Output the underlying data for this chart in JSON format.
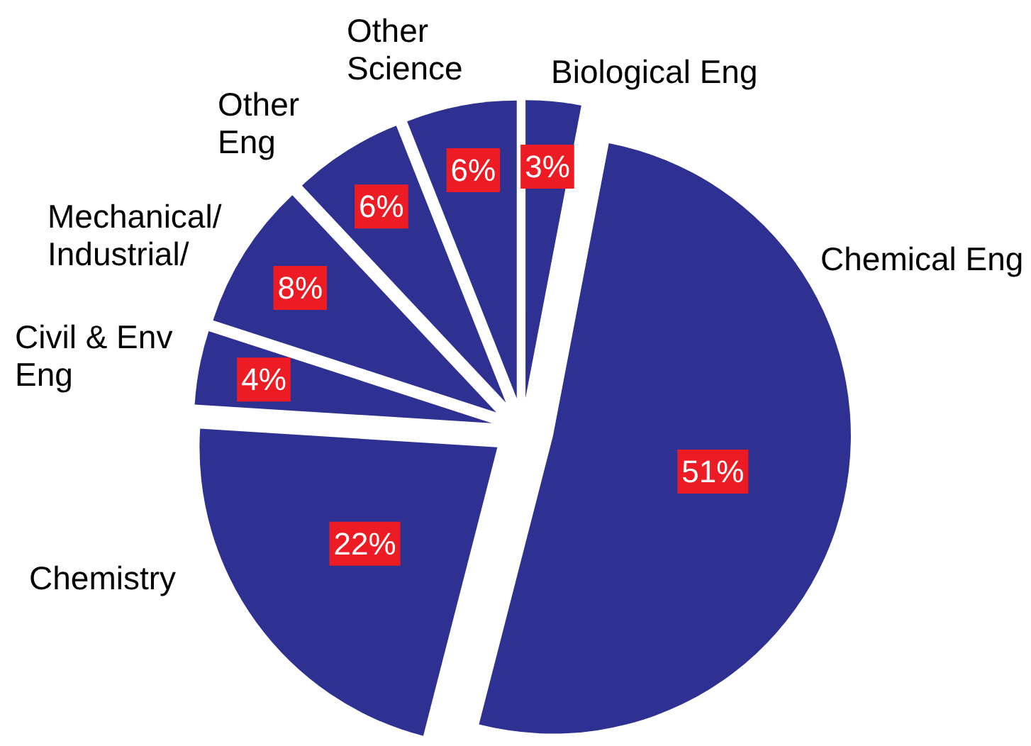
{
  "chart_data": {
    "type": "pie",
    "categories": [
      "Biological Eng",
      "Chemical Eng",
      "Chemistry",
      "Civil & Env\nEng",
      "Mechanical/\nIndustrial/",
      "Other\nEng",
      "Other\nScience"
    ],
    "values": [
      3,
      51,
      22,
      4,
      8,
      6,
      6
    ],
    "colors": [
      "#2e3192",
      "#2e3192",
      "#2e3192",
      "#2e3192",
      "#2e3192",
      "#2e3192",
      "#2e3192"
    ],
    "value_labels": [
      "3%",
      "51%",
      "22%",
      "4%",
      "8%",
      "6%",
      "6%"
    ]
  }
}
